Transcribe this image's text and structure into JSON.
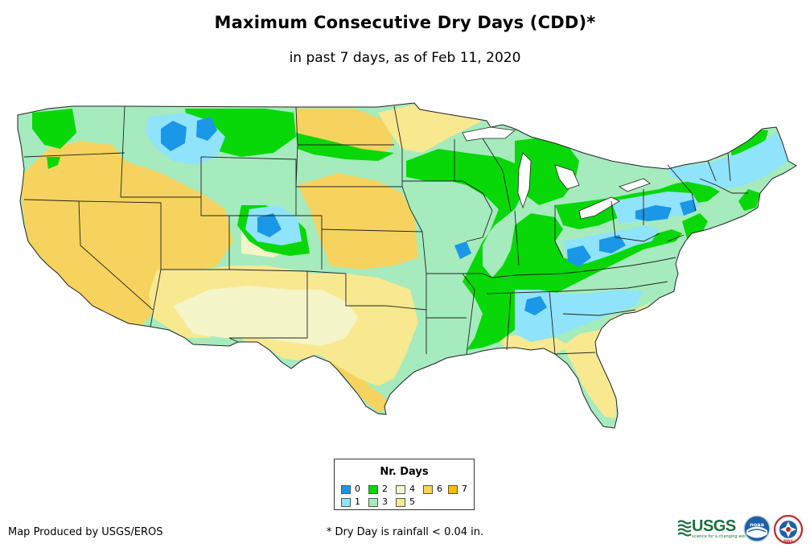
{
  "title": "Maximum Consecutive Dry Days (CDD)*",
  "subtitle": "in past 7 days, as of Feb 11, 2020",
  "legend": {
    "title": "Nr. Days",
    "items": [
      {
        "label": "0",
        "color": "#1a97e6"
      },
      {
        "label": "1",
        "color": "#8fe3fa"
      },
      {
        "label": "2",
        "color": "#08d808"
      },
      {
        "label": "3",
        "color": "#a5ebbd"
      },
      {
        "label": "4",
        "color": "#f4f5c8"
      },
      {
        "label": "5",
        "color": "#f8e890"
      },
      {
        "label": "6",
        "color": "#f6d35e"
      },
      {
        "label": "7",
        "color": "#f5bf00"
      }
    ]
  },
  "credit": "Map Produced by USGS/EROS",
  "footnote": "* Dry Day is rainfall < 0.04 in.",
  "logos": {
    "usgs": "USGS",
    "usgs_tagline": "science for a changing world",
    "noaa": "noaa",
    "nws": "NWS"
  }
}
